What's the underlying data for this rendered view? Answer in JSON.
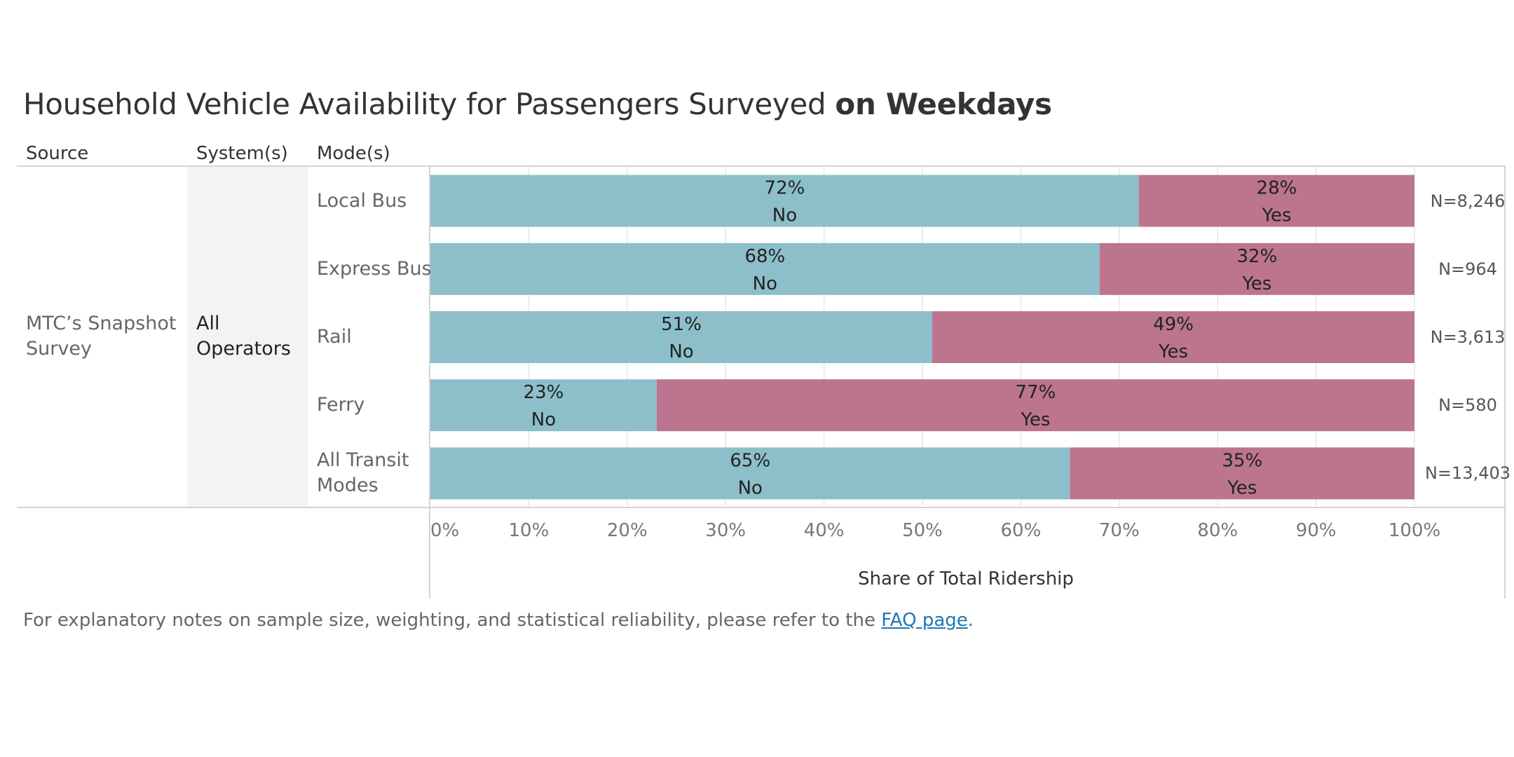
{
  "title": {
    "main": "Household Vehicle Availability for Passengers Surveyed",
    "bold": "on Weekdays"
  },
  "headers": {
    "source": "Source",
    "systems": "System(s)",
    "modes": "Mode(s)"
  },
  "source_value": "MTC’s Snapshot Survey",
  "system_value": "All Operators",
  "colors": {
    "no": "#8cbfc9",
    "yes": "#bc748f",
    "gridline": "#e6e6e6",
    "axis": "#d4d4d4"
  },
  "chart_data": {
    "type": "bar",
    "orientation": "horizontal",
    "stacked": true,
    "normalized": true,
    "categories": [
      "Local Bus",
      "Express Bus",
      "Rail",
      "Ferry",
      "All Transit Modes"
    ],
    "series": [
      {
        "name": "No",
        "values": [
          72,
          68,
          51,
          23,
          65
        ]
      },
      {
        "name": "Yes",
        "values": [
          28,
          32,
          49,
          77,
          35
        ]
      }
    ],
    "data_labels": [
      [
        "72%",
        "28%"
      ],
      [
        "68%",
        "32%"
      ],
      [
        "51%",
        "49%"
      ],
      [
        "23%",
        "77%"
      ],
      [
        "65%",
        "35%"
      ]
    ],
    "sample_sizes": [
      "N=8,246",
      "N=964",
      "N=3,613",
      "N=580",
      "N=13,403"
    ],
    "xlabel": "Share of Total Ridership",
    "ylabel": "",
    "xlim": [
      0,
      100
    ],
    "x_ticks": [
      "0%",
      "10%",
      "20%",
      "30%",
      "40%",
      "50%",
      "60%",
      "70%",
      "80%",
      "90%",
      "100%"
    ],
    "grid": true
  },
  "footnote": {
    "text": "For explanatory notes on sample size, weighting, and statistical reliability, please refer to the",
    "link_text": "FAQ page",
    "end": "."
  }
}
